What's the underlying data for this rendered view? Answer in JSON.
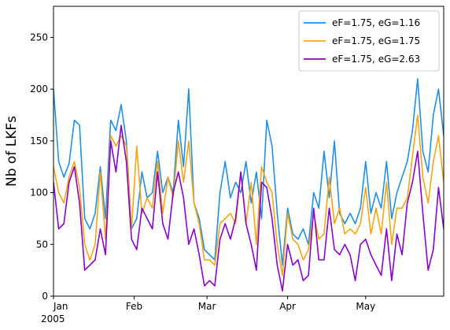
{
  "chart_data": {
    "type": "line",
    "ylabel": "Nb of LKFs",
    "x": [
      "2005-01-01",
      "2005-01-03",
      "2005-01-05",
      "2005-01-07",
      "2005-01-09",
      "2005-01-11",
      "2005-01-13",
      "2005-01-15",
      "2005-01-17",
      "2005-01-19",
      "2005-01-21",
      "2005-01-23",
      "2005-01-25",
      "2005-01-27",
      "2005-01-29",
      "2005-01-31",
      "2005-02-02",
      "2005-02-04",
      "2005-02-06",
      "2005-02-08",
      "2005-02-10",
      "2005-02-12",
      "2005-02-14",
      "2005-02-16",
      "2005-02-18",
      "2005-02-20",
      "2005-02-22",
      "2005-02-24",
      "2005-02-26",
      "2005-02-28",
      "2005-03-02",
      "2005-03-04",
      "2005-03-06",
      "2005-03-08",
      "2005-03-10",
      "2005-03-12",
      "2005-03-14",
      "2005-03-16",
      "2005-03-18",
      "2005-03-20",
      "2005-03-22",
      "2005-03-24",
      "2005-03-26",
      "2005-03-28",
      "2005-03-30",
      "2005-04-01",
      "2005-04-03",
      "2005-04-05",
      "2005-04-07",
      "2005-04-09",
      "2005-04-11",
      "2005-04-13",
      "2005-04-15",
      "2005-04-17",
      "2005-04-19",
      "2005-04-21",
      "2005-04-23",
      "2005-04-25",
      "2005-04-27",
      "2005-04-29",
      "2005-05-01",
      "2005-05-03",
      "2005-05-05",
      "2005-05-07",
      "2005-05-09",
      "2005-05-11",
      "2005-05-13",
      "2005-05-15",
      "2005-05-17",
      "2005-05-19",
      "2005-05-21",
      "2005-05-23",
      "2005-05-25",
      "2005-05-27",
      "2005-05-29",
      "2005-05-31"
    ],
    "series": [
      {
        "name": "eF=1.75, eG=1.16",
        "color": "#1f8fe5",
        "values": [
          200,
          130,
          115,
          128,
          170,
          165,
          75,
          65,
          80,
          125,
          75,
          170,
          160,
          185,
          150,
          65,
          75,
          120,
          95,
          100,
          140,
          100,
          115,
          100,
          170,
          125,
          200,
          90,
          75,
          45,
          40,
          35,
          100,
          130,
          95,
          110,
          100,
          130,
          90,
          120,
          75,
          170,
          145,
          80,
          30,
          85,
          60,
          55,
          65,
          50,
          100,
          85,
          140,
          95,
          150,
          80,
          70,
          80,
          70,
          85,
          130,
          80,
          100,
          85,
          130,
          75,
          100,
          115,
          130,
          160,
          210,
          140,
          120,
          175,
          200,
          155
        ]
      },
      {
        "name": "eF=1.75, eG=1.75",
        "color": "#f5a511",
        "values": [
          125,
          100,
          90,
          115,
          130,
          105,
          50,
          35,
          50,
          120,
          55,
          155,
          145,
          155,
          145,
          65,
          145,
          80,
          95,
          85,
          130,
          80,
          115,
          95,
          150,
          110,
          150,
          90,
          70,
          35,
          35,
          30,
          70,
          75,
          80,
          70,
          120,
          70,
          110,
          50,
          125,
          110,
          100,
          50,
          20,
          80,
          55,
          50,
          35,
          45,
          80,
          55,
          60,
          115,
          70,
          85,
          60,
          65,
          60,
          70,
          105,
          60,
          85,
          60,
          110,
          50,
          85,
          85,
          95,
          135,
          175,
          115,
          90,
          130,
          155,
          110
        ]
      },
      {
        "name": "eF=1.75, eG=2.63",
        "color": "#8a00cc",
        "values": [
          110,
          65,
          70,
          110,
          125,
          90,
          25,
          30,
          35,
          65,
          40,
          150,
          120,
          165,
          130,
          55,
          45,
          85,
          75,
          65,
          120,
          70,
          55,
          100,
          120,
          95,
          50,
          65,
          40,
          10,
          15,
          10,
          55,
          70,
          55,
          75,
          120,
          70,
          50,
          25,
          110,
          105,
          75,
          30,
          5,
          50,
          30,
          35,
          15,
          20,
          85,
          35,
          35,
          85,
          45,
          40,
          50,
          40,
          15,
          50,
          55,
          40,
          30,
          20,
          65,
          15,
          60,
          40,
          90,
          110,
          140,
          80,
          25,
          45,
          105,
          65
        ]
      }
    ],
    "xlim": [
      "2005-01-01",
      "2005-05-31"
    ],
    "xticks": [
      {
        "value": "2005-01-01",
        "label": "Jan"
      },
      {
        "value": "2005-02-01",
        "label": "Feb"
      },
      {
        "value": "2005-03-01",
        "label": "Mar"
      },
      {
        "value": "2005-04-01",
        "label": "Apr"
      },
      {
        "value": "2005-05-01",
        "label": "May"
      }
    ],
    "x_year_label": "2005",
    "ylim": [
      0,
      280
    ],
    "yticks": [
      0,
      50,
      100,
      150,
      200,
      250
    ],
    "grid": false,
    "legend": "upper right"
  }
}
